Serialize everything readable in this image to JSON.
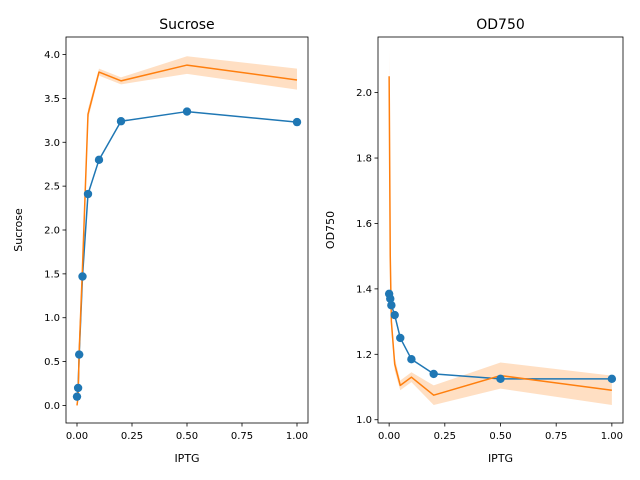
{
  "colors": {
    "series_blue": "#1f77b4",
    "series_orange": "#ff7f0e",
    "band_orange": "#ffd9b8",
    "axis": "#000000",
    "background": "#ffffff"
  },
  "chart_data": [
    {
      "type": "line",
      "title": "Sucrose",
      "xlabel": "IPTG",
      "ylabel": "Sucrose",
      "xlim": [
        -0.05,
        1.05
      ],
      "ylim": [
        -0.2,
        4.2
      ],
      "xticks": [
        0.0,
        0.25,
        0.5,
        0.75,
        1.0
      ],
      "xtick_labels": [
        "0.00",
        "0.25",
        "0.50",
        "0.75",
        "1.00"
      ],
      "yticks": [
        0.0,
        0.5,
        1.0,
        1.5,
        2.0,
        2.5,
        3.0,
        3.5,
        4.0
      ],
      "ytick_labels": [
        "0.0",
        "0.5",
        "1.0",
        "1.5",
        "2.0",
        "2.5",
        "3.0",
        "3.5",
        "4.0"
      ],
      "grid": false,
      "series": [
        {
          "color": "#1f77b4",
          "markers": true,
          "x": [
            0.0,
            0.005,
            0.01,
            0.025,
            0.05,
            0.1,
            0.2,
            0.5,
            1.0
          ],
          "y": [
            0.1,
            0.2,
            0.58,
            1.47,
            2.41,
            2.8,
            3.24,
            3.35,
            3.23
          ]
        },
        {
          "color": "#ff7f0e",
          "markers": false,
          "x": [
            0.0,
            0.005,
            0.01,
            0.025,
            0.05,
            0.1,
            0.2,
            0.5,
            1.0
          ],
          "y": [
            0.0,
            0.1,
            0.62,
            1.58,
            3.32,
            3.8,
            3.7,
            3.88,
            3.71
          ],
          "lower": [
            0.0,
            0.08,
            0.58,
            1.52,
            3.26,
            3.76,
            3.66,
            3.78,
            3.6
          ],
          "upper": [
            0.02,
            0.12,
            0.66,
            1.64,
            3.38,
            3.84,
            3.74,
            3.98,
            3.84
          ]
        }
      ]
    },
    {
      "type": "line",
      "title": "OD750",
      "xlabel": "IPTG",
      "ylabel": "OD750",
      "xlim": [
        -0.05,
        1.05
      ],
      "ylim": [
        0.99,
        2.17
      ],
      "xticks": [
        0.0,
        0.25,
        0.5,
        0.75,
        1.0
      ],
      "xtick_labels": [
        "0.00",
        "0.25",
        "0.50",
        "0.75",
        "1.00"
      ],
      "yticks": [
        1.0,
        1.2,
        1.4,
        1.6,
        1.8,
        2.0
      ],
      "ytick_labels": [
        "1.0",
        "1.2",
        "1.4",
        "1.6",
        "1.8",
        "2.0"
      ],
      "grid": false,
      "series": [
        {
          "color": "#1f77b4",
          "markers": true,
          "x": [
            0.0,
            0.005,
            0.01,
            0.025,
            0.05,
            0.1,
            0.2,
            0.5,
            1.0
          ],
          "y": [
            1.385,
            1.37,
            1.35,
            1.32,
            1.25,
            1.185,
            1.14,
            1.125,
            1.125
          ]
        },
        {
          "color": "#ff7f0e",
          "markers": false,
          "x": [
            0.0,
            0.005,
            0.01,
            0.025,
            0.05,
            0.1,
            0.2,
            0.5,
            1.0
          ],
          "y": [
            2.05,
            1.5,
            1.3,
            1.17,
            1.105,
            1.13,
            1.075,
            1.135,
            1.09
          ],
          "lower": [
            1.97,
            1.45,
            1.27,
            1.15,
            1.09,
            1.115,
            1.045,
            1.095,
            1.045
          ],
          "upper": [
            2.13,
            1.55,
            1.33,
            1.19,
            1.12,
            1.145,
            1.105,
            1.175,
            1.135
          ]
        }
      ]
    }
  ]
}
